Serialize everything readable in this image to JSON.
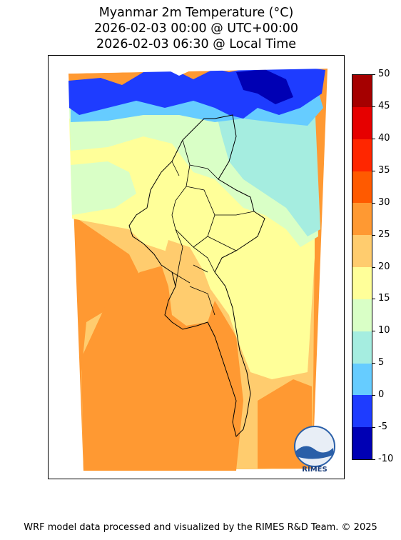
{
  "title": {
    "line1": "Myanmar 2m Temperature (°C)",
    "line2": "2026-02-03 00:00 @ UTC+00:00",
    "line3": "2026-02-03 06:30 @ Local Time"
  },
  "colorbar": {
    "ticks": [
      "50",
      "45",
      "40",
      "35",
      "30",
      "25",
      "20",
      "15",
      "10",
      "5",
      "0",
      "-5",
      "-10"
    ],
    "colors": [
      "#a50000",
      "#e60000",
      "#ff2600",
      "#ff5a00",
      "#ff9932",
      "#ffcc6e",
      "#ffff99",
      "#d9ffc6",
      "#a5ede0",
      "#66ccff",
      "#1e3cff",
      "#0000b4"
    ]
  },
  "logo": {
    "text": "RIMES"
  },
  "footer": {
    "text": "WRF model data processed and visualized by the RIMES R&D Team. © 2025"
  }
}
